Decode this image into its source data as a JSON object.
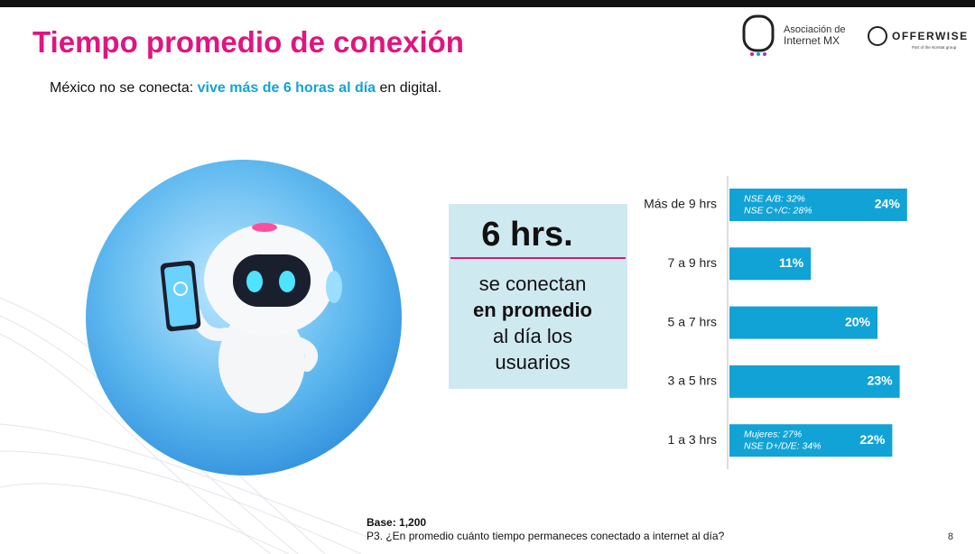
{
  "slide": {
    "title": "Tiempo promedio de conexión",
    "subtitle": {
      "lead": "México no se conecta: ",
      "highlight": "vive más de 6 horas al día",
      "tail": " en digital."
    },
    "callout": {
      "headline": "6 hrs.",
      "lines": [
        "se conectan",
        "en promedio",
        "al día los",
        "usuarios"
      ]
    },
    "logos": {
      "amipci": [
        "Asociación de",
        "Internet MX"
      ],
      "offerwise": "OFFERWISE",
      "offerwise_tagline": "Part of the Norstat group"
    },
    "footer": {
      "base": "Base: 1,200",
      "question": "P3. ¿En promedio cuánto tiempo permaneces conectado a internet al día?",
      "page": "8"
    }
  },
  "chart_data": {
    "type": "hbar",
    "categories": [
      "Más de 9 hrs",
      "7 a 9 hrs",
      "5 a 7 hrs",
      "3 a 5 hrs",
      "1 a 3 hrs"
    ],
    "values": [
      24,
      11,
      20,
      23,
      22
    ],
    "value_labels": [
      "24%",
      "11%",
      "20%",
      "23%",
      "22%"
    ],
    "annotations": [
      [
        "NSE A/B: 32%",
        "NSE C+/C: 28%"
      ],
      [],
      [],
      [],
      [
        "Mujeres: 27%",
        "NSE D+/D/E: 34%"
      ]
    ],
    "color": "#12a3d6"
  }
}
